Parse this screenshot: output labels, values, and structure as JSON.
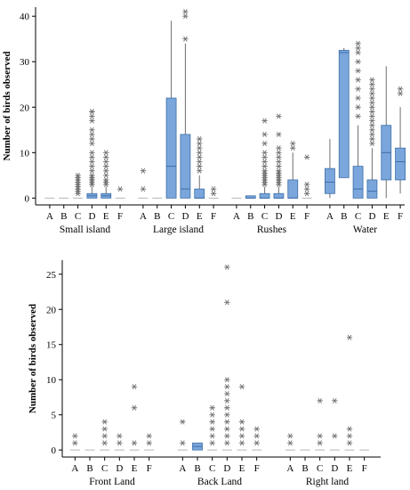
{
  "colors": {
    "box_fill": "#7aa6dc",
    "box_edge": "#3c6ea8",
    "outlier": "#6f6f6f",
    "axis": "#000000"
  },
  "chart_data": [
    {
      "type": "boxplot",
      "ylabel": "Number of birds observed",
      "ylim": [
        -1.5,
        42
      ],
      "yticks": [
        0,
        10,
        20,
        30,
        40
      ],
      "grid": false,
      "groups": [
        {
          "name": "Small island",
          "categories": [
            {
              "label": "A",
              "q1": 0,
              "median": 0,
              "q3": 0,
              "whisker_low": 0,
              "whisker_high": 0,
              "outliers": []
            },
            {
              "label": "B",
              "q1": 0,
              "median": 0,
              "q3": 0,
              "whisker_low": 0,
              "whisker_high": 0,
              "outliers": []
            },
            {
              "label": "C",
              "q1": 0,
              "median": 0,
              "q3": 0,
              "whisker_low": 0,
              "whisker_high": 0,
              "outliers": [
                1,
                1.5,
                2,
                2.5,
                3,
                3.5,
                4,
                4.5,
                5
              ]
            },
            {
              "label": "D",
              "q1": 0,
              "median": 0.5,
              "q3": 1,
              "whisker_low": 0,
              "whisker_high": 2.5,
              "outliers": [
                3,
                3,
                3.5,
                4,
                4,
                4.5,
                5,
                6,
                7,
                8,
                9,
                10,
                12,
                13,
                14,
                15,
                17,
                18,
                19,
                19
              ]
            },
            {
              "label": "E",
              "q1": 0,
              "median": 0.5,
              "q3": 1,
              "whisker_low": 0,
              "whisker_high": 2.5,
              "outliers": [
                3,
                3.5,
                4,
                5,
                6,
                7,
                8,
                9,
                10
              ]
            },
            {
              "label": "F",
              "q1": 0,
              "median": 0,
              "q3": 0,
              "whisker_low": 0,
              "whisker_high": 0,
              "outliers": [
                2
              ]
            }
          ]
        },
        {
          "name": "Large island",
          "categories": [
            {
              "label": "A",
              "q1": 0,
              "median": 0,
              "q3": 0,
              "whisker_low": 0,
              "whisker_high": 0,
              "outliers": [
                2,
                6
              ]
            },
            {
              "label": "B",
              "q1": 0,
              "median": 0,
              "q3": 0,
              "whisker_low": 0,
              "whisker_high": 0,
              "outliers": []
            },
            {
              "label": "C",
              "q1": 0,
              "median": 7,
              "q3": 22,
              "whisker_low": 0,
              "whisker_high": 39,
              "outliers": []
            },
            {
              "label": "D",
              "q1": 0,
              "median": 2,
              "q3": 14,
              "whisker_low": 0,
              "whisker_high": 34,
              "outliers": [
                35,
                40,
                41
              ]
            },
            {
              "label": "E",
              "q1": 0,
              "median": 0,
              "q3": 2,
              "whisker_low": 0,
              "whisker_high": 5,
              "outliers": [
                6,
                7,
                8,
                9,
                10,
                11,
                12,
                13
              ]
            },
            {
              "label": "F",
              "q1": 0,
              "median": 0,
              "q3": 0,
              "whisker_low": 0,
              "whisker_high": 0,
              "outliers": [
                1,
                2
              ]
            }
          ]
        },
        {
          "name": "Rushes",
          "categories": [
            {
              "label": "A",
              "q1": 0,
              "median": 0,
              "q3": 0,
              "whisker_low": 0,
              "whisker_high": 0,
              "outliers": []
            },
            {
              "label": "B",
              "q1": 0,
              "median": 0,
              "q3": 0.5,
              "whisker_low": 0,
              "whisker_high": 0.5,
              "outliers": []
            },
            {
              "label": "C",
              "q1": 0,
              "median": 0,
              "q3": 1,
              "whisker_low": 0,
              "whisker_high": 2.5,
              "outliers": [
                3,
                3.5,
                4,
                4.5,
                5,
                5.5,
                6,
                7,
                8,
                9,
                10,
                12,
                14,
                17
              ]
            },
            {
              "label": "D",
              "q1": 0,
              "median": 0,
              "q3": 1,
              "whisker_low": 0,
              "whisker_high": 2.5,
              "outliers": [
                3,
                3.5,
                4,
                4.5,
                5,
                5.5,
                6,
                7,
                8,
                9,
                10,
                11,
                14,
                18
              ]
            },
            {
              "label": "E",
              "q1": 0,
              "median": 0,
              "q3": 4,
              "whisker_low": 0,
              "whisker_high": 10,
              "outliers": [
                11,
                12
              ]
            },
            {
              "label": "F",
              "q1": 0,
              "median": 0,
              "q3": 0,
              "whisker_low": 0,
              "whisker_high": 0,
              "outliers": [
                1,
                2,
                3,
                9
              ]
            }
          ]
        },
        {
          "name": "Water",
          "categories": [
            {
              "label": "A",
              "q1": 1,
              "median": 3.5,
              "q3": 6.5,
              "whisker_low": 0,
              "whisker_high": 13,
              "outliers": []
            },
            {
              "label": "B",
              "q1": 4.5,
              "median": 32,
              "q3": 32.5,
              "whisker_low": 4.5,
              "whisker_high": 33,
              "outliers": []
            },
            {
              "label": "C",
              "q1": 0,
              "median": 2,
              "q3": 7,
              "whisker_low": 0,
              "whisker_high": 16,
              "outliers": [
                18,
                20,
                22,
                24,
                26,
                28,
                30,
                32,
                33,
                34
              ]
            },
            {
              "label": "D",
              "q1": 0,
              "median": 1.5,
              "q3": 4,
              "whisker_low": 0,
              "whisker_high": 11,
              "outliers": [
                12,
                13,
                14,
                15,
                16,
                17,
                18,
                19,
                20,
                21,
                22,
                23,
                24,
                25,
                26
              ]
            },
            {
              "label": "E",
              "q1": 4,
              "median": 10,
              "q3": 16,
              "whisker_low": 0,
              "whisker_high": 29,
              "outliers": []
            },
            {
              "label": "F",
              "q1": 4,
              "median": 8,
              "q3": 11,
              "whisker_low": 1,
              "whisker_high": 20,
              "outliers": [
                23,
                24
              ]
            }
          ]
        }
      ]
    },
    {
      "type": "boxplot",
      "ylabel": "Number of birds observed",
      "ylim": [
        -1,
        27
      ],
      "yticks": [
        0,
        5,
        10,
        15,
        20,
        25
      ],
      "grid": false,
      "groups": [
        {
          "name": "Front Land",
          "categories": [
            {
              "label": "A",
              "q1": 0,
              "median": 0,
              "q3": 0,
              "whisker_low": 0,
              "whisker_high": 0,
              "outliers": [
                1,
                2
              ]
            },
            {
              "label": "B",
              "q1": 0,
              "median": 0,
              "q3": 0,
              "whisker_low": 0,
              "whisker_high": 0,
              "outliers": []
            },
            {
              "label": "C",
              "q1": 0,
              "median": 0,
              "q3": 0,
              "whisker_low": 0,
              "whisker_high": 0,
              "outliers": [
                1,
                2,
                3,
                4
              ]
            },
            {
              "label": "D",
              "q1": 0,
              "median": 0,
              "q3": 0,
              "whisker_low": 0,
              "whisker_high": 0,
              "outliers": [
                1,
                2
              ]
            },
            {
              "label": "E",
              "q1": 0,
              "median": 0,
              "q3": 0,
              "whisker_low": 0,
              "whisker_high": 0,
              "outliers": [
                1,
                6,
                9
              ]
            },
            {
              "label": "F",
              "q1": 0,
              "median": 0,
              "q3": 0,
              "whisker_low": 0,
              "whisker_high": 0,
              "outliers": [
                1,
                2
              ]
            }
          ]
        },
        {
          "name": "Back Land",
          "categories": [
            {
              "label": "A",
              "q1": 0,
              "median": 0,
              "q3": 0,
              "whisker_low": 0,
              "whisker_high": 0,
              "outliers": [
                1,
                4
              ]
            },
            {
              "label": "B",
              "q1": 0,
              "median": 0.5,
              "q3": 1,
              "whisker_low": 0,
              "whisker_high": 1,
              "outliers": []
            },
            {
              "label": "C",
              "q1": 0,
              "median": 0,
              "q3": 0,
              "whisker_low": 0,
              "whisker_high": 0,
              "outliers": [
                1,
                2,
                3,
                4,
                5,
                6
              ]
            },
            {
              "label": "D",
              "q1": 0,
              "median": 0,
              "q3": 0,
              "whisker_low": 0,
              "whisker_high": 0,
              "outliers": [
                1,
                2,
                3,
                4,
                5,
                6,
                7,
                8,
                9,
                10,
                21,
                26
              ]
            },
            {
              "label": "E",
              "q1": 0,
              "median": 0,
              "q3": 0,
              "whisker_low": 0,
              "whisker_high": 0,
              "outliers": [
                1,
                2,
                3,
                4,
                9
              ]
            },
            {
              "label": "F",
              "q1": 0,
              "median": 0,
              "q3": 0,
              "whisker_low": 0,
              "whisker_high": 0,
              "outliers": [
                1,
                2,
                3
              ]
            }
          ]
        },
        {
          "name": "Right land",
          "categories": [
            {
              "label": "A",
              "q1": 0,
              "median": 0,
              "q3": 0,
              "whisker_low": 0,
              "whisker_high": 0,
              "outliers": [
                1,
                2
              ]
            },
            {
              "label": "B",
              "q1": 0,
              "median": 0,
              "q3": 0,
              "whisker_low": 0,
              "whisker_high": 0,
              "outliers": []
            },
            {
              "label": "C",
              "q1": 0,
              "median": 0,
              "q3": 0,
              "whisker_low": 0,
              "whisker_high": 0,
              "outliers": [
                1,
                2,
                7
              ]
            },
            {
              "label": "D",
              "q1": 0,
              "median": 0,
              "q3": 0,
              "whisker_low": 0,
              "whisker_high": 0,
              "outliers": [
                2,
                7
              ]
            },
            {
              "label": "E",
              "q1": 0,
              "median": 0,
              "q3": 0,
              "whisker_low": 0,
              "whisker_high": 0,
              "outliers": [
                1,
                2,
                3,
                16
              ]
            },
            {
              "label": "F",
              "q1": 0,
              "median": 0,
              "q3": 0,
              "whisker_low": 0,
              "whisker_high": 0,
              "outliers": []
            }
          ]
        }
      ]
    }
  ]
}
